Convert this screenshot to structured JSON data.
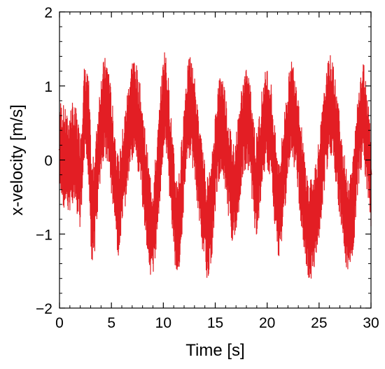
{
  "chart_data": {
    "type": "line",
    "title": "",
    "xlabel": "Time [s]",
    "ylabel": "x-velocity [m/s]",
    "xlim": [
      0,
      30
    ],
    "ylim": [
      -2,
      2
    ],
    "xticks": [
      0,
      5,
      10,
      15,
      20,
      25,
      30
    ],
    "xtick_labels": [
      "0",
      "5",
      "10",
      "15",
      "20",
      "25",
      "30"
    ],
    "yticks": [
      -2,
      -1,
      0,
      1,
      2
    ],
    "ytick_labels": [
      "−2",
      "−1",
      "0",
      "1",
      "2"
    ],
    "grid": false,
    "legend": "none",
    "line_color": "#e31e24",
    "series": [
      {
        "x": [
          0,
          0.4,
          0.8,
          1.2,
          1.6,
          2.0,
          2.4,
          2.8,
          3.1,
          3.4,
          3.8,
          4.1,
          4.4,
          4.7,
          5.0,
          5.3,
          5.7,
          6.0,
          6.4,
          6.8,
          7.1,
          7.4,
          7.8,
          8.2,
          8.6,
          9.0,
          9.4,
          9.8,
          10.1,
          10.4,
          10.8,
          11.2,
          11.6,
          11.9,
          12.2,
          12.6,
          13.0,
          13.4,
          13.8,
          14.2,
          14.6,
          14.9,
          15.2,
          15.5,
          15.8,
          16.2,
          16.6,
          17.0,
          17.4,
          17.8,
          18.2,
          18.6,
          18.9,
          19.2,
          19.6,
          20.0,
          20.4,
          20.7,
          21.0,
          21.3,
          21.6,
          22.0,
          22.4,
          22.8,
          23.2,
          23.6,
          24.0,
          24.4,
          24.8,
          25.2,
          25.6,
          26.0,
          26.4,
          26.8,
          27.2,
          27.6,
          28.0,
          28.4,
          28.7,
          29.0,
          29.3,
          29.6,
          30.0
        ],
        "y": [
          0.15,
          0.05,
          -0.1,
          0.1,
          0.0,
          -0.3,
          0.6,
          0.45,
          -0.75,
          -0.55,
          0.2,
          0.6,
          0.7,
          0.65,
          0.2,
          -0.2,
          -0.7,
          -0.35,
          0.1,
          0.55,
          0.75,
          0.6,
          0.3,
          -0.2,
          -0.75,
          -1.0,
          -0.4,
          0.4,
          0.85,
          0.6,
          -0.2,
          -0.9,
          -0.75,
          -0.1,
          0.5,
          0.75,
          0.45,
          -0.1,
          -0.55,
          -0.9,
          -0.8,
          -0.2,
          0.3,
          0.5,
          0.45,
          0.0,
          -0.4,
          -0.35,
          0.15,
          0.55,
          0.5,
          0.1,
          -0.4,
          -0.1,
          0.4,
          0.6,
          0.35,
          -0.2,
          -0.65,
          -0.55,
          -0.1,
          0.4,
          0.7,
          0.5,
          -0.1,
          -0.6,
          -1.0,
          -0.9,
          -0.55,
          -0.15,
          0.4,
          0.75,
          0.6,
          0.15,
          -0.35,
          -0.8,
          -0.9,
          -0.45,
          0.2,
          0.55,
          0.65,
          0.3,
          -0.2
        ]
      }
    ]
  }
}
